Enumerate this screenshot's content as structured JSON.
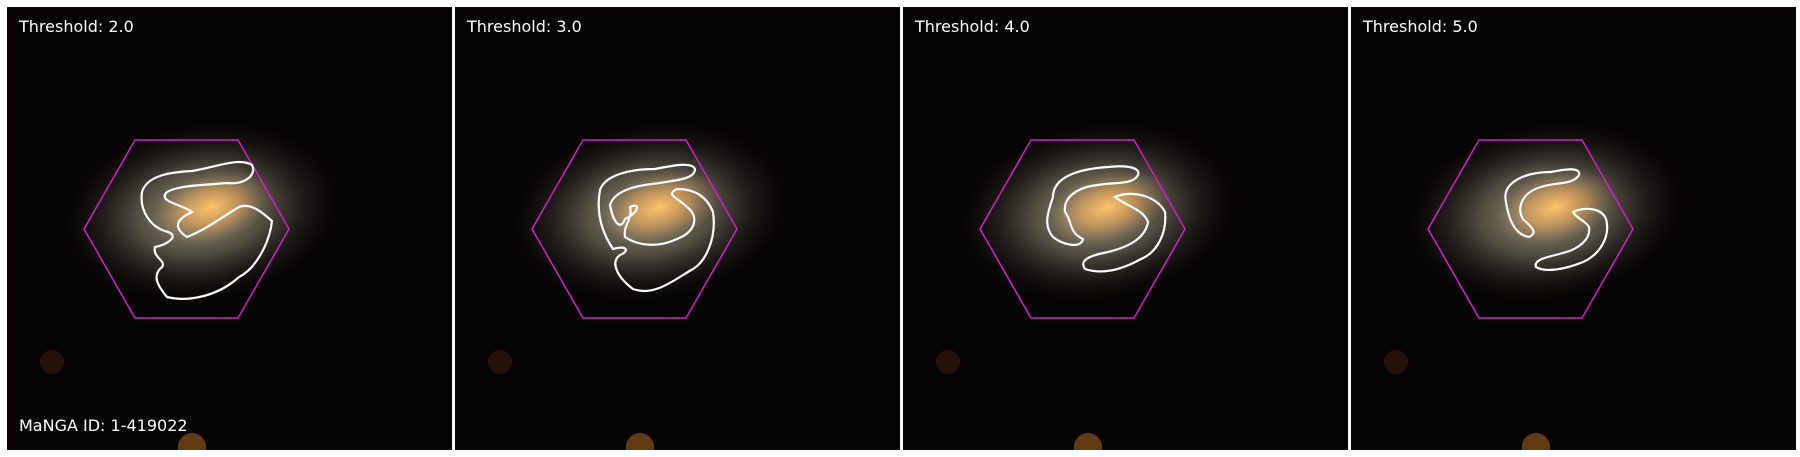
{
  "panels": [
    {
      "threshold_label": "Threshold: 2.0"
    },
    {
      "threshold_label": "Threshold: 3.0"
    },
    {
      "threshold_label": "Threshold: 4.0"
    },
    {
      "threshold_label": "Threshold: 5.0"
    }
  ],
  "manga_id_label": "MaNGA ID: 1-419022",
  "colors": {
    "background": "#060304",
    "galaxy_core": "#f7b458",
    "galaxy_halo": "#a89f86",
    "hexagon": "#d020d0",
    "contour": "#ffffff",
    "text": "#ffffff"
  }
}
